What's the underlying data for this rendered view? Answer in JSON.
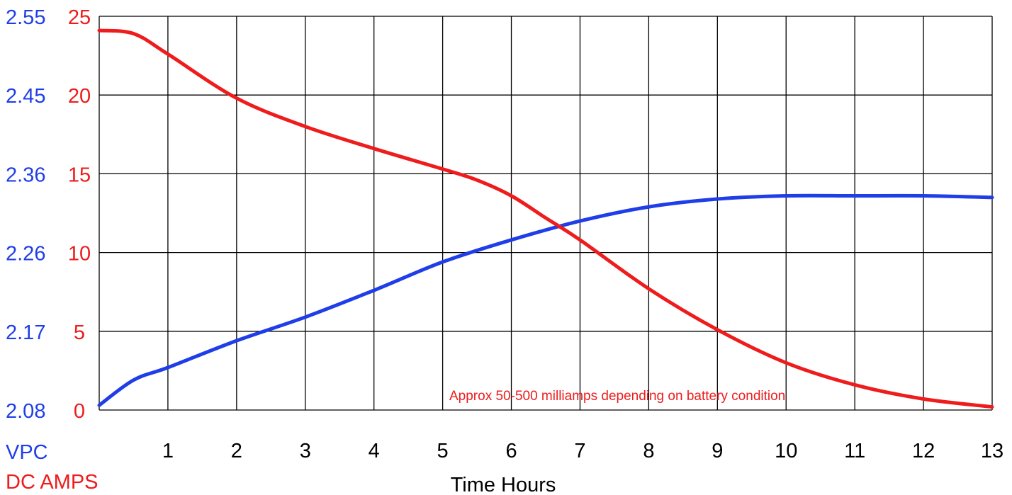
{
  "chart_data": {
    "type": "line",
    "xlabel": "Time Hours",
    "x_ticks": [
      "1",
      "2",
      "3",
      "4",
      "5",
      "6",
      "7",
      "8",
      "9",
      "10",
      "11",
      "12",
      "13"
    ],
    "xlim": [
      0,
      13
    ],
    "left_axis_label": "VPC",
    "right_axis_label": "DC AMPS",
    "vpc_ticks": [
      "2.55",
      "2.45",
      "2.36",
      "2.26",
      "2.17",
      "2.08"
    ],
    "amp_ticks": [
      "25",
      "20",
      "15",
      "10",
      "5",
      "0"
    ],
    "ylim_amps": [
      0,
      25
    ],
    "annotation": "Approx 50-500 milliamps depending on battery condition",
    "series": [
      {
        "axis": "VPC",
        "color": "#1f3ee8",
        "x": [
          0,
          0.5,
          1,
          2,
          3,
          4,
          5,
          6,
          7,
          8,
          9,
          10,
          11,
          12,
          13
        ],
        "y_amp_scale": [
          0.3,
          1.9,
          2.7,
          4.4,
          5.9,
          7.6,
          9.4,
          10.8,
          12.0,
          12.9,
          13.4,
          13.6,
          13.6,
          13.6,
          13.5
        ]
      },
      {
        "axis": "DC AMPS",
        "color": "#ee1c1c",
        "x": [
          0,
          0.5,
          1,
          2,
          3,
          4,
          5,
          5.5,
          6,
          6.5,
          7,
          8,
          9,
          10,
          11,
          12,
          13
        ],
        "y": [
          24.1,
          23.9,
          22.6,
          19.8,
          18.0,
          16.6,
          15.3,
          14.6,
          13.6,
          12.2,
          10.8,
          7.7,
          5.1,
          3.0,
          1.6,
          0.7,
          0.2
        ]
      }
    ],
    "grid": true
  }
}
